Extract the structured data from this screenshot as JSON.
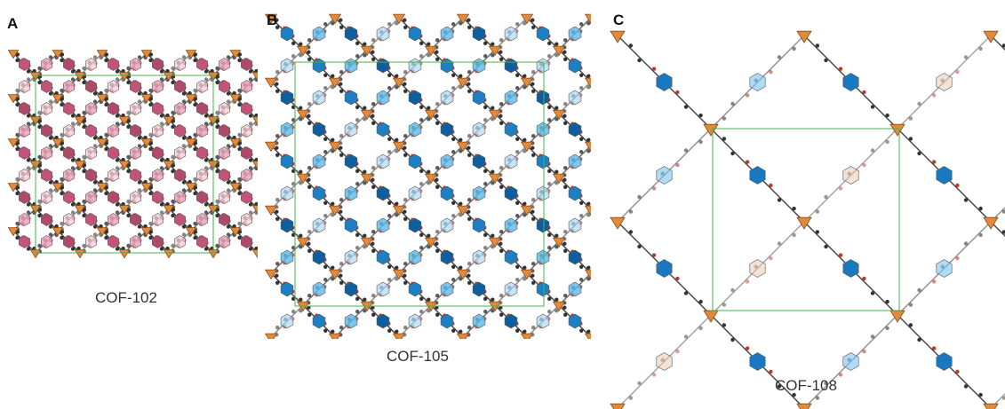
{
  "panels": [
    {
      "letter": "A",
      "label": "COF-102"
    },
    {
      "letter": "B",
      "label": "COF-105"
    },
    {
      "letter": "C",
      "label": "COF-108"
    }
  ]
}
